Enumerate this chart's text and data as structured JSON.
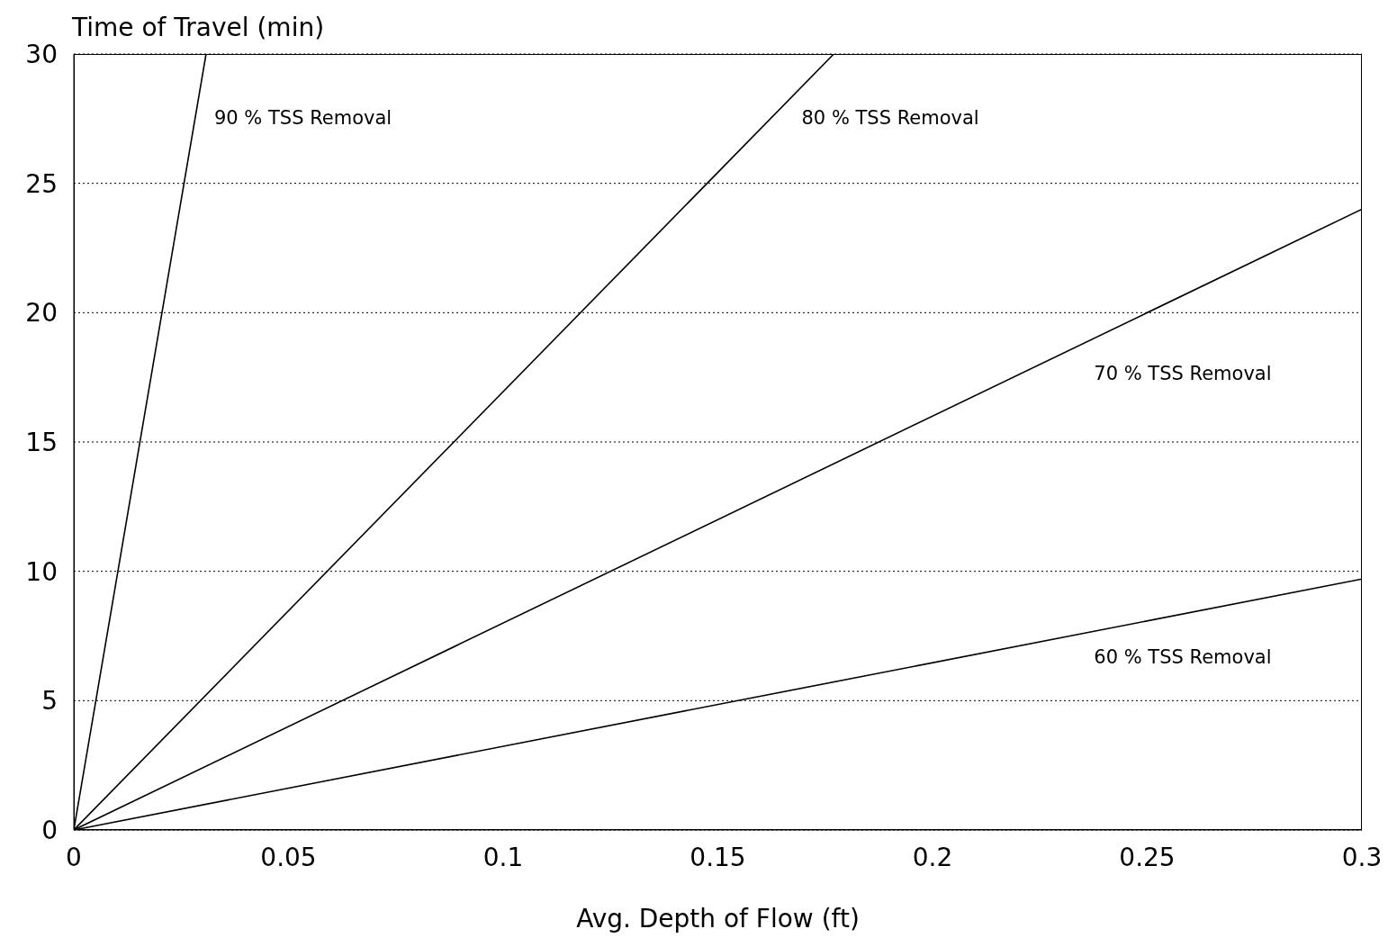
{
  "chart_data": {
    "type": "line",
    "xlabel": "Avg. Depth of Flow (ft)",
    "ylabel": "Time of Travel (min)",
    "xlim": [
      0,
      0.3
    ],
    "xticks": [
      0,
      0.05,
      0.1,
      0.15,
      0.2,
      0.25,
      0.3
    ],
    "ylim": [
      0,
      30
    ],
    "yticks": [
      0,
      5,
      10,
      15,
      20,
      25,
      30
    ],
    "grid": "y",
    "marker": "none",
    "line_style": "solid",
    "series": [
      {
        "name": "90 % TSS Removal",
        "color": "#000000",
        "x": [
          0,
          0.0308
        ],
        "values": [
          0,
          30
        ]
      },
      {
        "name": "80 % TSS Removal",
        "color": "#000000",
        "x": [
          0,
          0.177
        ],
        "values": [
          0,
          30
        ]
      },
      {
        "name": "70 % TSS Removal",
        "color": "#000000",
        "x": [
          0,
          0.3
        ],
        "values": [
          0,
          24
        ]
      },
      {
        "name": "60 % TSS Removal",
        "color": "#000000",
        "x": [
          0,
          0.3
        ],
        "values": [
          0,
          9.7
        ]
      }
    ]
  }
}
